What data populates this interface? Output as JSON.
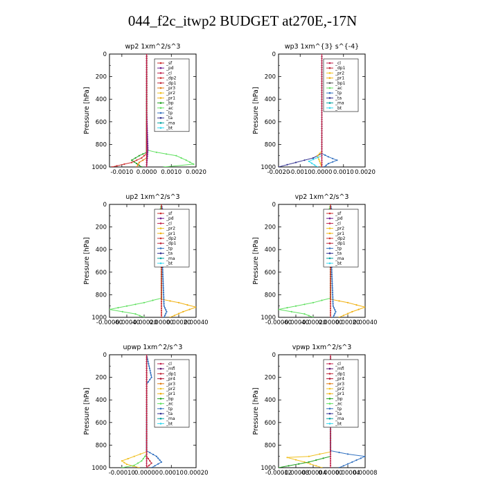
{
  "title": "044_f2c_itwp2  BUDGET at270E,-17N",
  "colors": {
    "_sf": "#cc2a2a",
    "_pd": "#6b1a8f",
    "_cl": "#c0204a",
    "_dp2": "#d03030",
    "_dp1": "#c02838",
    "_pr3": "#e07a10",
    "_pr2": "#f0c020",
    "_pr1": "#f0b010",
    "_pr4": "#b01030",
    "_mfl": "#5a1070",
    "_bp": "#20a020",
    "_ac": "#60e060",
    "_tp": "#3070c0",
    "_ta": "#303090",
    "_ma": "#00a0a0",
    "_bt": "#30d8f0"
  },
  "chart_data": [
    {
      "type": "line",
      "title": "wp2   1xm^2/s^3",
      "ylabel": "Pressure [hPa]",
      "ylim": [
        1000,
        0
      ],
      "yticks": [
        "0",
        "200",
        "400",
        "600",
        "800",
        "1000"
      ],
      "xlim": [
        -0.0015,
        0.002
      ],
      "xticks": [
        "-0.0010",
        "0.0000",
        "0.0010",
        "0.0020"
      ],
      "legend": [
        "_sf",
        "_pd",
        "_cl",
        "_dp2",
        "_dp1",
        "_pr3",
        "_pr2",
        "_pr1",
        "_bp",
        "_ac",
        "_tp",
        "_ta",
        "_ma",
        "_bt"
      ],
      "series": [
        {
          "name": "_ac",
          "points": [
            [
              0,
              0
            ],
            [
              0,
              850
            ],
            [
              0.0004,
              870
            ],
            [
              0.0012,
              900
            ],
            [
              0.0016,
              940
            ],
            [
              0.0019,
              975
            ],
            [
              0.0007,
              1000
            ]
          ]
        },
        {
          "name": "_bp",
          "points": [
            [
              0,
              0
            ],
            [
              0,
              870
            ],
            [
              -0.0003,
              900
            ],
            [
              -0.0006,
              940
            ],
            [
              -0.0004,
              970
            ],
            [
              -0.0002,
              1000
            ]
          ]
        },
        {
          "name": "_dp2",
          "points": [
            [
              0,
              0
            ],
            [
              0,
              880
            ],
            [
              -0.0002,
              920
            ],
            [
              -0.0006,
              960
            ],
            [
              -0.0012,
              990
            ],
            [
              -0.0014,
              1000
            ]
          ]
        },
        {
          "name": "_pr3",
          "points": [
            [
              0,
              0
            ],
            [
              0,
              920
            ],
            [
              -0.0003,
              960
            ],
            [
              -0.0004,
              1000
            ]
          ]
        },
        {
          "name": "_pd",
          "points": [
            [
              0,
              0
            ],
            [
              0,
              500
            ],
            [
              5e-05,
              850
            ],
            [
              0,
              1000
            ]
          ]
        },
        {
          "name": "_cl",
          "points": [
            [
              0,
              0
            ],
            [
              0,
              1000
            ]
          ]
        }
      ]
    },
    {
      "type": "line",
      "title": "wp3   1xm^{3} s^{-4}",
      "ylabel": "Pressure [hPa]",
      "ylim": [
        1000,
        0
      ],
      "yticks": [
        "0",
        "200",
        "400",
        "600",
        "800",
        "1000"
      ],
      "xlim": [
        -0.002,
        0.002
      ],
      "xticks": [
        "-0.0020",
        "-0.0010",
        "0.0000",
        "0.0010",
        "0.0020"
      ],
      "legend": [
        "_cl",
        "_dp1",
        "_pr2",
        "_pr1",
        "_bp1",
        "_ac",
        "_tp",
        "_ta",
        "_ma",
        "_bt"
      ],
      "series": [
        {
          "name": "_ta",
          "points": [
            [
              0,
              0
            ],
            [
              0,
              880
            ],
            [
              -0.0004,
              920
            ],
            [
              -0.0012,
              960
            ],
            [
              -0.002,
              1000
            ]
          ]
        },
        {
          "name": "_tp",
          "points": [
            [
              0,
              0
            ],
            [
              0,
              880
            ],
            [
              0.0003,
              910
            ],
            [
              0.0007,
              940
            ],
            [
              0.0003,
              970
            ],
            [
              0.0001,
              1000
            ]
          ]
        },
        {
          "name": "_pr2",
          "points": [
            [
              0,
              0
            ],
            [
              0,
              860
            ],
            [
              -0.0002,
              900
            ],
            [
              -0.0001,
              950
            ],
            [
              0,
              1000
            ]
          ]
        },
        {
          "name": "_bt",
          "points": [
            [
              0,
              0
            ],
            [
              0,
              900
            ],
            [
              -0.0006,
              950
            ],
            [
              -0.0002,
              1000
            ]
          ]
        },
        {
          "name": "_cl",
          "points": [
            [
              0,
              0
            ],
            [
              0,
              1000
            ]
          ]
        }
      ]
    },
    {
      "type": "line",
      "title": "up2   1xm^2/s^3",
      "ylabel": "Pressure [hPa]",
      "ylim": [
        1000,
        0
      ],
      "yticks": [
        "0",
        "200",
        "400",
        "600",
        "800",
        "1000"
      ],
      "xlim": [
        -0.0006,
        0.0004
      ],
      "xticks": [
        "-0.00060",
        "-0.00040",
        "-0.00020",
        "0.00000",
        "0.00020",
        "0.00040"
      ],
      "legend": [
        "_sf",
        "_pd",
        "_cl",
        "_pr2",
        "_pr1",
        "_dp2",
        "_dp1",
        "_tp",
        "_ta",
        "_ma",
        "_bt"
      ],
      "series": [
        {
          "name": "_pr1",
          "points": [
            [
              0,
              0
            ],
            [
              0,
              840
            ],
            [
              0.0002,
              870
            ],
            [
              0.0004,
              910
            ],
            [
              0.00025,
              950
            ],
            [
              0.0001,
              1000
            ]
          ]
        },
        {
          "name": "_ac",
          "points": [
            [
              0,
              0
            ],
            [
              -5e-05,
              180
            ],
            [
              0,
              260
            ],
            [
              0,
              830
            ],
            [
              -0.0002,
              870
            ],
            [
              -0.0004,
              900
            ],
            [
              -0.0006,
              930
            ],
            [
              -0.0003,
              970
            ],
            [
              -0.0002,
              1000
            ]
          ]
        },
        {
          "name": "_tp",
          "points": [
            [
              0,
              0
            ],
            [
              5e-05,
              200
            ],
            [
              0,
              300
            ],
            [
              3e-05,
              900
            ],
            [
              6e-05,
              950
            ],
            [
              3e-05,
              1000
            ]
          ]
        },
        {
          "name": "_sf",
          "points": [
            [
              0,
              0
            ],
            [
              0,
              1000
            ]
          ]
        }
      ]
    },
    {
      "type": "line",
      "title": "vp2   1xm^2/s^3",
      "ylabel": "Pressure [hPa]",
      "ylim": [
        1000,
        0
      ],
      "yticks": [
        "0",
        "200",
        "400",
        "600",
        "800",
        "1000"
      ],
      "xlim": [
        -0.0006,
        0.0004
      ],
      "xticks": [
        "-0.00060",
        "-0.00040",
        "-0.00020",
        "0.00000",
        "0.00020",
        "0.00040"
      ],
      "legend": [
        "_sf",
        "_pd",
        "_cl",
        "_pr2",
        "_pr1",
        "_dp2",
        "_dp1",
        "_tp",
        "_ta",
        "_ma",
        "_bt"
      ],
      "series": [
        {
          "name": "_pr1",
          "points": [
            [
              0,
              0
            ],
            [
              0,
              840
            ],
            [
              0.0002,
              870
            ],
            [
              0.0004,
              910
            ],
            [
              0.00025,
              950
            ],
            [
              0.0001,
              1000
            ]
          ]
        },
        {
          "name": "_ac",
          "points": [
            [
              0,
              0
            ],
            [
              -5e-05,
              180
            ],
            [
              0,
              260
            ],
            [
              0,
              830
            ],
            [
              -0.0002,
              870
            ],
            [
              -0.0004,
              900
            ],
            [
              -0.0006,
              930
            ],
            [
              -0.0003,
              970
            ],
            [
              -0.0002,
              1000
            ]
          ]
        },
        {
          "name": "_tp",
          "points": [
            [
              0,
              0
            ],
            [
              5e-05,
              200
            ],
            [
              0,
              300
            ],
            [
              3e-05,
              900
            ],
            [
              6e-05,
              950
            ],
            [
              3e-05,
              1000
            ]
          ]
        },
        {
          "name": "_sf",
          "points": [
            [
              0,
              0
            ],
            [
              0,
              1000
            ]
          ]
        }
      ]
    },
    {
      "type": "line",
      "title": "upwp   1xm^2/s^3",
      "ylabel": "Pressure [hPa]",
      "ylim": [
        1000,
        0
      ],
      "yticks": [
        "0",
        "200",
        "400",
        "600",
        "800",
        "1000"
      ],
      "xlim": [
        -0.00015,
        0.0002
      ],
      "xticks": [
        "-0.00010",
        "0.00000",
        "0.00010",
        "0.00020"
      ],
      "legend": [
        "_cl",
        "_mfl",
        "_dp1",
        "_pr4",
        "_pr3",
        "_pr2",
        "_pr1",
        "_bp",
        "_ac",
        "_tp",
        "_ta",
        "_ma",
        "_bt"
      ],
      "series": [
        {
          "name": "_pr2",
          "points": [
            [
              0,
              0
            ],
            [
              0,
              860
            ],
            [
              -5e-05,
              900
            ],
            [
              -0.0001,
              940
            ],
            [
              -8e-05,
              970
            ],
            [
              -3e-05,
              1000
            ]
          ]
        },
        {
          "name": "_tp",
          "points": [
            [
              0,
              0
            ],
            [
              2e-05,
              200
            ],
            [
              0,
              260
            ],
            [
              0,
              850
            ],
            [
              4e-05,
              900
            ],
            [
              6e-05,
              950
            ],
            [
              2e-05,
              1000
            ]
          ]
        },
        {
          "name": "_ac",
          "points": [
            [
              0,
              0
            ],
            [
              0,
              880
            ],
            [
              -2e-05,
              940
            ],
            [
              -5e-05,
              980
            ],
            [
              -0.0001,
              1000
            ]
          ]
        },
        {
          "name": "_dp1",
          "points": [
            [
              0,
              0
            ],
            [
              0,
              900
            ],
            [
              2e-05,
              960
            ],
            [
              0,
              1000
            ]
          ]
        },
        {
          "name": "_cl",
          "points": [
            [
              0,
              0
            ],
            [
              0,
              1000
            ]
          ]
        }
      ]
    },
    {
      "type": "line",
      "title": "vpwp   1xm^2/s^3",
      "ylabel": "Pressure [hPa]",
      "ylim": [
        1000,
        0
      ],
      "yticks": [
        "0",
        "200",
        "400",
        "600",
        "800",
        "1000"
      ],
      "xlim": [
        -0.00012,
        8e-05
      ],
      "xticks": [
        "-0.00012",
        "-0.00008",
        "-0.00004",
        "0.00000",
        "0.00004",
        "0.00008"
      ],
      "legend": [
        "_cl",
        "_mfl",
        "_dp1",
        "_pr4",
        "_pr3",
        "_pr2",
        "_pr1",
        "_bp",
        "_ac",
        "_tp",
        "_ta",
        "_ma",
        "_bt"
      ],
      "series": [
        {
          "name": "_pr2",
          "points": [
            [
              0,
              0
            ],
            [
              0,
              130
            ],
            [
              -1e-05,
              200
            ],
            [
              -1.5e-05,
              280
            ],
            [
              -1e-05,
              330
            ],
            [
              0,
              400
            ],
            [
              0,
              860
            ],
            [
              -5e-05,
              900
            ],
            [
              -0.0001,
              910
            ],
            [
              -6e-05,
              950
            ],
            [
              -2e-05,
              1000
            ]
          ]
        },
        {
          "name": "_tp",
          "points": [
            [
              0,
              0
            ],
            [
              0,
              150
            ],
            [
              1.5e-05,
              220
            ],
            [
              0,
              300
            ],
            [
              0,
              850
            ],
            [
              4e-05,
              880
            ],
            [
              8e-05,
              900
            ],
            [
              5e-05,
              950
            ],
            [
              2e-05,
              1000
            ]
          ]
        },
        {
          "name": "_bp",
          "points": [
            [
              0,
              0
            ],
            [
              0,
              900
            ],
            [
              -5e-05,
              950
            ],
            [
              -0.00012,
              1000
            ]
          ]
        },
        {
          "name": "_cl",
          "points": [
            [
              0,
              0
            ],
            [
              0,
              1000
            ]
          ]
        }
      ]
    }
  ]
}
